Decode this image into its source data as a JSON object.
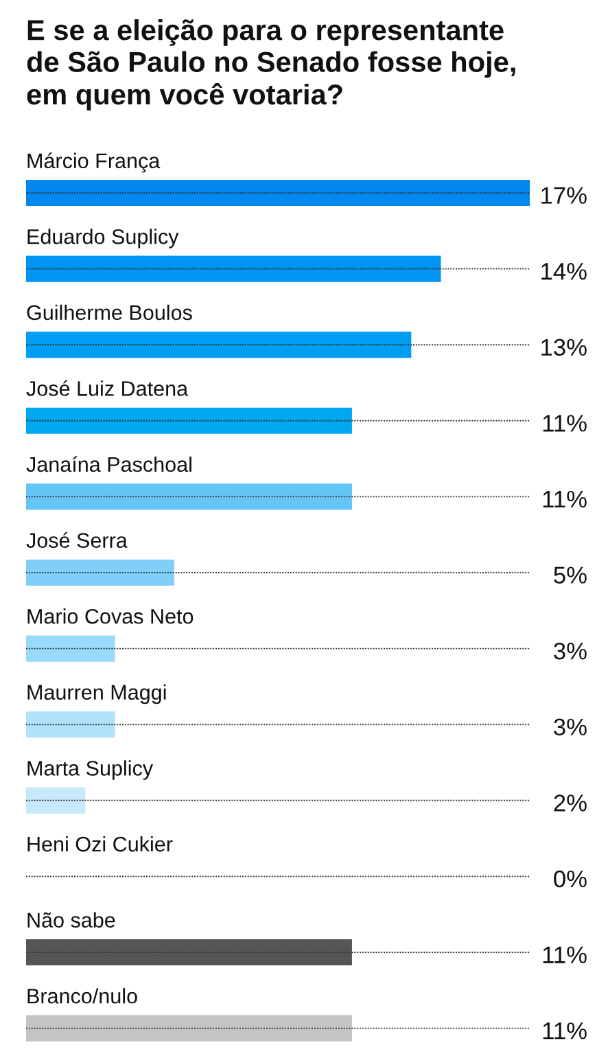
{
  "chart_data": {
    "type": "bar",
    "orientation": "horizontal",
    "title": "E se a eleição para o representante\nde São Paulo no Senado fosse hoje,\nem quem você votaria?",
    "categories": [
      "Márcio França",
      "Eduardo Suplicy",
      "Guilherme Boulos",
      "José Luiz Datena",
      "Janaína Paschoal",
      "José Serra",
      "Mario Covas Neto",
      "Maurren Maggi",
      "Marta Suplicy",
      "Heni Ozi Cukier",
      "Não sabe",
      "Branco/nulo"
    ],
    "values": [
      17,
      14,
      13,
      11,
      11,
      5,
      3,
      3,
      2,
      0,
      11,
      11
    ],
    "value_labels": [
      "17%",
      "14%",
      "13%",
      "11%",
      "11%",
      "5%",
      "3%",
      "3%",
      "2%",
      "0%",
      "11%",
      "11%"
    ],
    "colors": [
      "#0088ee",
      "#0095f2",
      "#009ef2",
      "#00a8f0",
      "#66c5f7",
      "#80cff9",
      "#99d9fa",
      "#b0e2fb",
      "#c7e9fb",
      "#d6eefc",
      "#555555",
      "#c4c4c4"
    ],
    "xlim": [
      0,
      17
    ],
    "grid": "y",
    "tick_labels": "y"
  }
}
